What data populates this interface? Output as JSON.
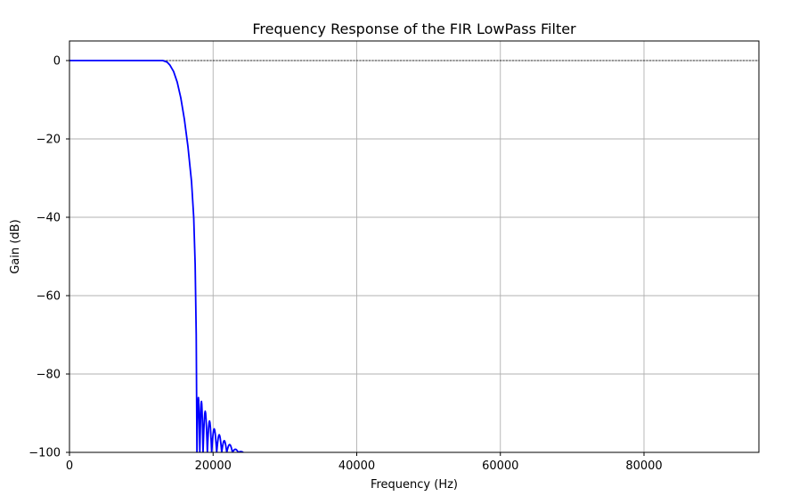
{
  "chart_data": {
    "type": "line",
    "title": "Frequency Response of the FIR LowPass Filter",
    "xlabel": "Frequency (Hz)",
    "ylabel": "Gain (dB)",
    "xlim": [
      0,
      96000
    ],
    "ylim": [
      -100,
      5
    ],
    "xticks": [
      0,
      20000,
      40000,
      60000,
      80000
    ],
    "yticks": [
      0,
      -20,
      -40,
      -60,
      -80,
      -100
    ],
    "xtick_labels": [
      "0",
      "20000",
      "40000",
      "60000",
      "80000"
    ],
    "ytick_labels": [
      "0",
      "−20",
      "−40",
      "−60",
      "−80",
      "−100"
    ],
    "grid": true,
    "reference_line": {
      "y": 0,
      "style": "dashed",
      "color": "#000000"
    },
    "series": [
      {
        "color": "#0000ff",
        "x": [
          0,
          12000,
          13000,
          13600,
          14000,
          14500,
          15000,
          15500,
          16000,
          16500,
          17000,
          17300,
          17500,
          17650,
          17750
        ],
        "y": [
          0,
          0,
          0,
          -0.4,
          -1.2,
          -2.8,
          -5.5,
          -9.5,
          -15,
          -22,
          -31,
          -40,
          -52,
          -70,
          -100
        ],
        "sidelobes": [
          {
            "x": 18150,
            "peak": -86
          },
          {
            "x": 18600,
            "peak": -87
          },
          {
            "x": 19200,
            "peak": -89.5
          },
          {
            "x": 19800,
            "peak": -92
          },
          {
            "x": 20500,
            "peak": -94
          },
          {
            "x": 21200,
            "peak": -95.5
          },
          {
            "x": 21900,
            "peak": -97
          },
          {
            "x": 22700,
            "peak": -98
          },
          {
            "x": 23500,
            "peak": -99.2
          },
          {
            "x": 24200,
            "peak": -99.8
          }
        ]
      }
    ]
  }
}
